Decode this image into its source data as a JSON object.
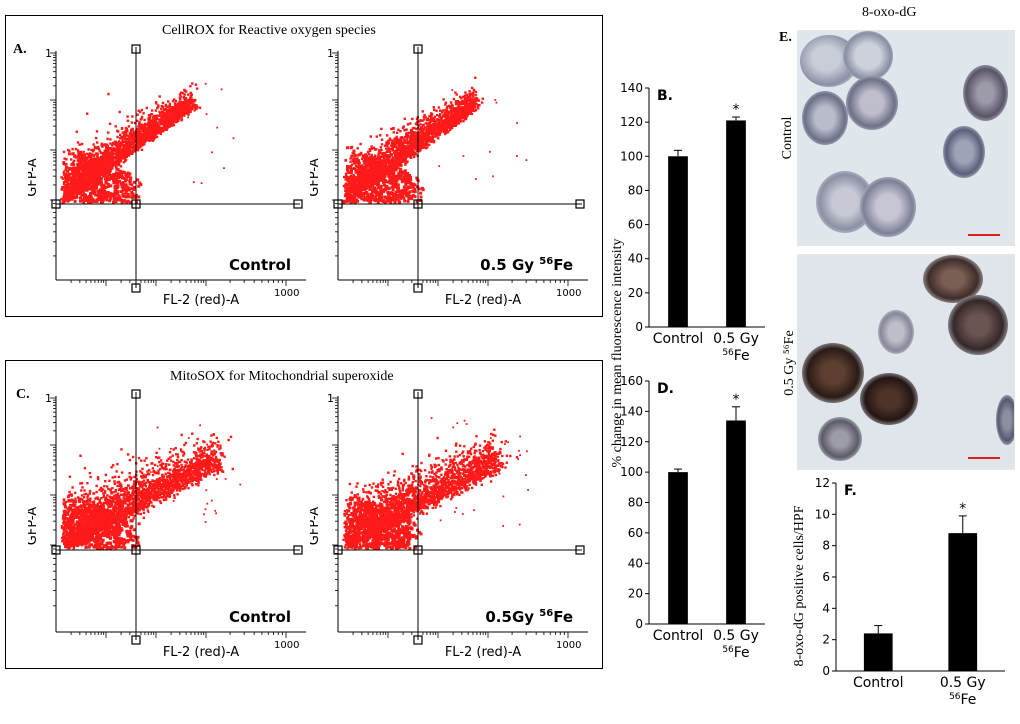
{
  "panels": {
    "A": {
      "letter": "A.",
      "title": "CellROX for Reactive oxygen species",
      "plots": [
        {
          "sample": "Control",
          "sup": "",
          "y_label": "GFP-A",
          "x_label": "FL-2 (red)-A",
          "axis_max_label": "1000"
        },
        {
          "sample": "0.5 Gy ",
          "sup": "56",
          "suffix": "Fe",
          "y_label": "GFP-A",
          "x_label": "FL-2 (red)-A",
          "axis_max_label": "1000"
        }
      ]
    },
    "C": {
      "letter": "C.",
      "title": "MitoSOX for Mitochondrial superoxide",
      "plots": [
        {
          "sample": "Control",
          "sup": "",
          "y_label": "GFP-A",
          "x_label": "FL-2 (red)-A",
          "axis_max_label": "1000"
        },
        {
          "sample": "0.5Gy ",
          "sup": "56",
          "suffix": "Fe",
          "y_label": "GFP-A",
          "x_label": "FL-2 (red)-A",
          "axis_max_label": "1000"
        }
      ]
    },
    "E": {
      "letter": "E.",
      "title": "8-oxo-dG",
      "row_labels": [
        "Control",
        "0.5 Gy ⁵⁶Fe"
      ]
    }
  },
  "shared_ylabel": "% change in mean fluorescence intensity",
  "chart_data": [
    {
      "id": "B",
      "type": "bar",
      "letter": "B.",
      "categories": [
        "Control",
        "0.5 Gy ⁵⁶Fe"
      ],
      "values": [
        100,
        121
      ],
      "errors": [
        3.5,
        2
      ],
      "significance": [
        "",
        "*"
      ],
      "ylim": [
        0,
        140
      ],
      "yticks": [
        0,
        20,
        40,
        60,
        80,
        100,
        120,
        140
      ],
      "ylabel": "% change in mean fluorescence intensity"
    },
    {
      "id": "D",
      "type": "bar",
      "letter": "D.",
      "categories": [
        "Control",
        "0.5 Gy ⁵⁶Fe"
      ],
      "values": [
        100,
        134
      ],
      "errors": [
        2,
        9
      ],
      "significance": [
        "",
        "*"
      ],
      "ylim": [
        0,
        160
      ],
      "yticks": [
        0,
        20,
        40,
        60,
        80,
        100,
        120,
        140,
        160
      ],
      "ylabel": "% change in mean fluorescence intensity"
    },
    {
      "id": "F",
      "type": "bar",
      "letter": "F.",
      "categories": [
        "Control",
        "0.5 Gy ⁵⁶Fe"
      ],
      "values": [
        2.4,
        8.8
      ],
      "errors": [
        0.5,
        1.1
      ],
      "significance": [
        "",
        "*"
      ],
      "ylim": [
        0,
        12
      ],
      "yticks": [
        0,
        2,
        4,
        6,
        8,
        10,
        12
      ],
      "ylabel": "8-oxo-dG positive cells/HPF"
    }
  ],
  "colors": {
    "scatter": "#ff1a1a",
    "bar": "#000000",
    "scalebar": "#e02020"
  }
}
